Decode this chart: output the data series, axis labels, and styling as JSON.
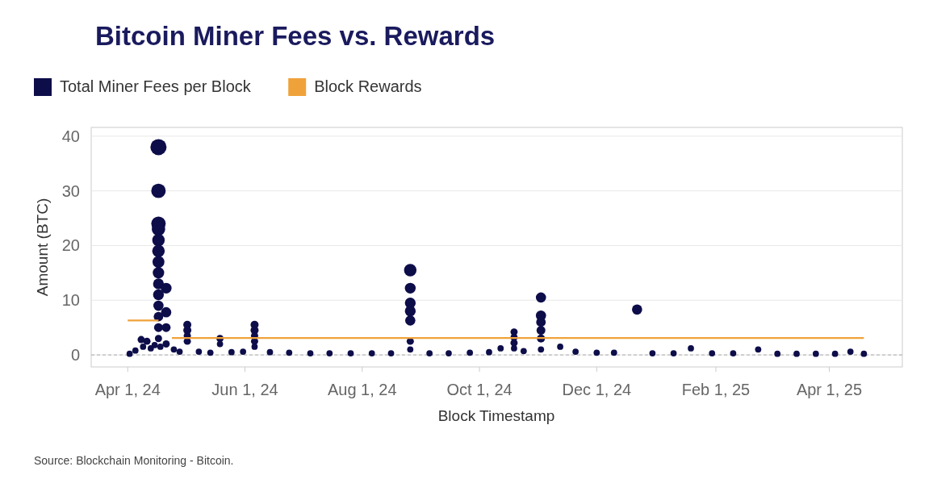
{
  "chart_data": {
    "type": "bubble",
    "title": "Bitcoin Miner Fees vs. Rewards",
    "xlabel": "Block Timestamp",
    "ylabel": "Amount (BTC)",
    "annotations": [
      "Source: Blockchain Monitoring - Bitcoin."
    ],
    "legend": "top left",
    "grid": "y",
    "xlim": [
      "2024-03-13",
      "2025-05-09"
    ],
    "xticks": [
      {
        "value": "2024-04-01",
        "label": "Apr 1, 24"
      },
      {
        "value": "2024-06-01",
        "label": "Jun 1, 24"
      },
      {
        "value": "2024-08-01",
        "label": "Aug 1, 24"
      },
      {
        "value": "2024-10-01",
        "label": "Oct 1, 24"
      },
      {
        "value": "2024-12-01",
        "label": "Dec 1, 24"
      },
      {
        "value": "2025-02-01",
        "label": "Feb 1, 25"
      },
      {
        "value": "2025-04-01",
        "label": "Apr 1, 25"
      }
    ],
    "ylim": [
      -2.2,
      41.6
    ],
    "yticks": [
      0,
      10,
      20,
      30,
      40
    ],
    "ref_lines": [
      {
        "axis": "y",
        "value": 0,
        "label": null,
        "color": "#aaaaaa",
        "line_style": "dashed"
      }
    ],
    "series": [
      {
        "name": "Total Miner Fees per Block",
        "marker": "circle",
        "color": "#0d0d4a",
        "x": [
          "2024-04-02",
          "2024-04-05",
          "2024-04-08",
          "2024-04-09",
          "2024-04-11",
          "2024-04-13",
          "2024-04-15",
          "2024-04-17",
          "2024-04-17",
          "2024-04-17",
          "2024-04-17",
          "2024-04-17",
          "2024-04-17",
          "2024-04-17",
          "2024-04-17",
          "2024-04-17",
          "2024-04-17",
          "2024-04-17",
          "2024-04-17",
          "2024-04-17",
          "2024-04-17",
          "2024-04-18",
          "2024-04-21",
          "2024-04-21",
          "2024-04-21",
          "2024-04-21",
          "2024-04-25",
          "2024-04-28",
          "2024-05-02",
          "2024-05-02",
          "2024-05-02",
          "2024-05-02",
          "2024-05-08",
          "2024-05-14",
          "2024-05-19",
          "2024-05-19",
          "2024-05-25",
          "2024-05-31",
          "2024-06-06",
          "2024-06-06",
          "2024-06-06",
          "2024-06-06",
          "2024-06-06",
          "2024-06-14",
          "2024-06-24",
          "2024-07-05",
          "2024-07-15",
          "2024-07-26",
          "2024-08-06",
          "2024-08-16",
          "2024-08-26",
          "2024-08-26",
          "2024-08-26",
          "2024-08-26",
          "2024-08-26",
          "2024-08-26",
          "2024-08-26",
          "2024-09-05",
          "2024-09-15",
          "2024-09-26",
          "2024-10-06",
          "2024-10-12",
          "2024-10-19",
          "2024-10-19",
          "2024-10-19",
          "2024-10-19",
          "2024-10-24",
          "2024-11-02",
          "2024-11-02",
          "2024-11-02",
          "2024-11-02",
          "2024-11-02",
          "2024-11-02",
          "2024-11-12",
          "2024-11-20",
          "2024-12-01",
          "2024-12-10",
          "2024-12-22",
          "2024-12-30",
          "2025-01-10",
          "2025-01-19",
          "2025-01-30",
          "2025-02-10",
          "2025-02-23",
          "2025-03-05",
          "2025-03-15",
          "2025-03-25",
          "2025-04-04",
          "2025-04-12",
          "2025-04-19"
        ],
        "values": [
          0.2,
          0.8,
          2.8,
          1.5,
          2.5,
          1.2,
          1.8,
          38,
          30,
          24,
          23,
          21,
          19,
          17,
          15,
          13,
          11,
          9,
          7,
          5,
          3,
          1.5,
          12.2,
          7.8,
          5,
          2,
          1,
          0.6,
          5.5,
          4.5,
          3.5,
          2.5,
          0.6,
          0.4,
          3,
          2,
          0.5,
          0.6,
          5.5,
          4.5,
          3.5,
          2.5,
          1.5,
          0.5,
          0.4,
          0.3,
          0.3,
          0.3,
          0.3,
          0.3,
          15.5,
          12.2,
          9.5,
          8,
          6.3,
          2.5,
          1,
          0.3,
          0.3,
          0.4,
          0.5,
          1.2,
          4.2,
          3.2,
          2.2,
          1.2,
          0.7,
          10.5,
          7.2,
          6,
          4.5,
          3,
          1,
          1.5,
          0.6,
          0.4,
          0.4,
          8.3,
          0.3,
          0.3,
          1.2,
          0.3,
          0.3,
          1,
          0.2,
          0.2,
          0.2,
          0.2,
          0.6,
          0.2
        ],
        "sizes": [
          0.15,
          0.15,
          0.2,
          0.15,
          0.2,
          0.15,
          0.15,
          1,
          0.8,
          0.8,
          0.7,
          0.6,
          0.6,
          0.55,
          0.5,
          0.45,
          0.45,
          0.4,
          0.35,
          0.3,
          0.2,
          0.15,
          0.45,
          0.4,
          0.3,
          0.2,
          0.15,
          0.15,
          0.25,
          0.25,
          0.2,
          0.2,
          0.15,
          0.15,
          0.2,
          0.15,
          0.15,
          0.15,
          0.25,
          0.25,
          0.2,
          0.2,
          0.15,
          0.15,
          0.15,
          0.15,
          0.15,
          0.15,
          0.15,
          0.15,
          0.6,
          0.45,
          0.45,
          0.45,
          0.4,
          0.2,
          0.15,
          0.15,
          0.15,
          0.15,
          0.15,
          0.15,
          0.2,
          0.2,
          0.2,
          0.15,
          0.15,
          0.4,
          0.4,
          0.35,
          0.3,
          0.25,
          0.15,
          0.15,
          0.15,
          0.15,
          0.15,
          0.4,
          0.15,
          0.15,
          0.15,
          0.15,
          0.15,
          0.15,
          0.15,
          0.15,
          0.15,
          0.15,
          0.15,
          0.15
        ]
      },
      {
        "name": "Block Rewards",
        "type": "line",
        "color": "#f0a23a",
        "x": [
          "2024-04-01",
          "2024-04-17",
          "2024-04-20",
          "2024-04-24",
          "2025-04-19"
        ],
        "values": [
          6.3,
          6.3,
          null,
          3.1,
          3.1
        ]
      }
    ]
  }
}
